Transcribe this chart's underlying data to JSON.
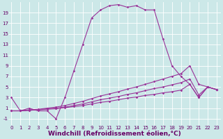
{
  "bg_color": "#cce8e8",
  "line_color": "#993399",
  "grid_color": "#ffffff",
  "xlabel": "Windchill (Refroidissement éolien,°C)",
  "xlabel_fontsize": 6.5,
  "ytick_vals": [
    -1,
    1,
    3,
    5,
    7,
    9,
    11,
    13,
    15,
    17,
    19
  ],
  "ytick_labels": [
    "-1",
    "1",
    "3",
    "5",
    "7",
    "9",
    "11",
    "13",
    "15",
    "17",
    "19"
  ],
  "xtick_vals": [
    0,
    1,
    2,
    3,
    4,
    5,
    6,
    7,
    8,
    9,
    10,
    11,
    12,
    13,
    14,
    15,
    16,
    17,
    18,
    19,
    20,
    21,
    22,
    23
  ],
  "xtick_labels": [
    "0",
    "1",
    "2",
    "3",
    "4",
    "5",
    "6",
    "7",
    "8",
    "9",
    "10",
    "11",
    "12",
    "13",
    "14",
    "15",
    "16",
    "17",
    "18",
    "19",
    "20",
    "21",
    "22",
    "23"
  ],
  "ylim": [
    -2.2,
    21.0
  ],
  "xlim": [
    -0.3,
    23.5
  ],
  "line1_x": [
    0,
    1,
    2,
    3,
    4,
    5,
    6,
    7,
    8,
    9,
    10,
    11,
    12,
    13,
    14,
    15,
    16,
    17,
    18,
    19,
    20,
    21,
    22,
    23
  ],
  "line1_y": [
    3,
    0.5,
    1.0,
    0.5,
    0.5,
    -1.0,
    3.0,
    8.0,
    13.0,
    18.0,
    19.5,
    20.3,
    20.5,
    20.0,
    20.3,
    19.5,
    19.5,
    14.0,
    9.0,
    7.0,
    5.5,
    3.0,
    5.0,
    4.5
  ],
  "line2_x": [
    0,
    1,
    2,
    3,
    4,
    5,
    6,
    7,
    8,
    9,
    10,
    11,
    12,
    13,
    14,
    15,
    16,
    17,
    18,
    19,
    20,
    21,
    22,
    23
  ],
  "line2_y": [
    0.5,
    0.5,
    0.6,
    0.7,
    0.8,
    0.9,
    1.1,
    1.3,
    1.5,
    1.8,
    2.1,
    2.3,
    2.6,
    2.9,
    3.1,
    3.4,
    3.6,
    3.9,
    4.1,
    4.4,
    5.5,
    3.0,
    5.0,
    4.5
  ],
  "line3_x": [
    0,
    1,
    2,
    3,
    4,
    5,
    6,
    7,
    8,
    9,
    10,
    11,
    12,
    13,
    14,
    15,
    16,
    17,
    18,
    19,
    20,
    21,
    22,
    23
  ],
  "line3_y": [
    0.5,
    0.5,
    0.6,
    0.7,
    0.9,
    1.0,
    1.2,
    1.5,
    1.8,
    2.2,
    2.6,
    2.9,
    3.2,
    3.6,
    3.9,
    4.3,
    4.7,
    5.0,
    5.4,
    5.8,
    6.5,
    3.5,
    5.0,
    4.5
  ],
  "line4_x": [
    0,
    1,
    2,
    3,
    4,
    5,
    6,
    7,
    8,
    9,
    10,
    11,
    12,
    13,
    14,
    15,
    16,
    17,
    18,
    19,
    20,
    21,
    22,
    23
  ],
  "line4_y": [
    0.5,
    0.5,
    0.7,
    0.8,
    1.0,
    1.2,
    1.5,
    1.9,
    2.3,
    2.8,
    3.3,
    3.7,
    4.1,
    4.6,
    5.0,
    5.5,
    6.0,
    6.5,
    7.0,
    7.5,
    9.0,
    5.5,
    5.0,
    4.5
  ],
  "marker": "D",
  "marker_size": 1.8,
  "linewidth": 0.8,
  "tick_fontsize": 5.0,
  "label_color": "#660066"
}
